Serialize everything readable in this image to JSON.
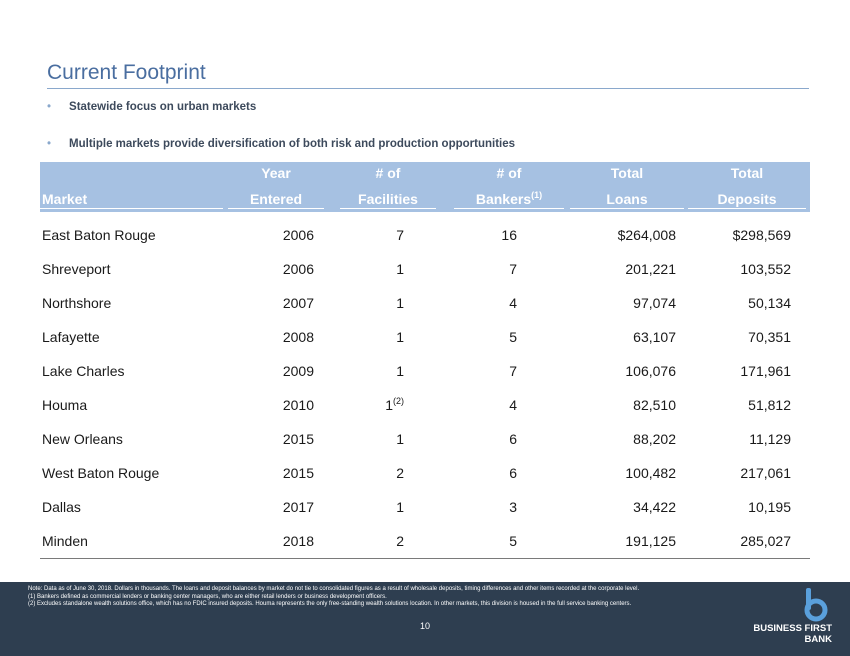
{
  "title": "Current Footprint",
  "bullets": [
    "Statewide focus on urban markets",
    "Multiple markets provide diversification of both risk and production opportunities"
  ],
  "table": {
    "headers": {
      "market": "Market",
      "year": [
        "Year",
        "Entered"
      ],
      "facilities": [
        "# of",
        "Facilities"
      ],
      "bankers": [
        "# of",
        "Bankers"
      ],
      "bankers_sup": "(1)",
      "loans": [
        "Total",
        "Loans"
      ],
      "deposits": [
        "Total",
        "Deposits"
      ]
    },
    "rows": [
      {
        "market": "East Baton Rouge",
        "year": "2006",
        "facilities": "7",
        "fac_sup": "",
        "bankers": "16",
        "loans": "$264,008",
        "deposits": "$298,569"
      },
      {
        "market": "Shreveport",
        "year": "2006",
        "facilities": "1",
        "fac_sup": "",
        "bankers": "7",
        "loans": "201,221",
        "deposits": "103,552"
      },
      {
        "market": "Northshore",
        "year": "2007",
        "facilities": "1",
        "fac_sup": "",
        "bankers": "4",
        "loans": "97,074",
        "deposits": "50,134"
      },
      {
        "market": "Lafayette",
        "year": "2008",
        "facilities": "1",
        "fac_sup": "",
        "bankers": "5",
        "loans": "63,107",
        "deposits": "70,351"
      },
      {
        "market": "Lake Charles",
        "year": "2009",
        "facilities": "1",
        "fac_sup": "",
        "bankers": "7",
        "loans": "106,076",
        "deposits": "171,961"
      },
      {
        "market": "Houma",
        "year": "2010",
        "facilities": "1",
        "fac_sup": "(2)",
        "bankers": "4",
        "loans": "82,510",
        "deposits": "51,812"
      },
      {
        "market": "New Orleans",
        "year": "2015",
        "facilities": "1",
        "fac_sup": "",
        "bankers": "6",
        "loans": "88,202",
        "deposits": "11,129"
      },
      {
        "market": "West Baton Rouge",
        "year": "2015",
        "facilities": "2",
        "fac_sup": "",
        "bankers": "6",
        "loans": "100,482",
        "deposits": "217,061"
      },
      {
        "market": "Dallas",
        "year": "2017",
        "facilities": "1",
        "fac_sup": "",
        "bankers": "3",
        "loans": "34,422",
        "deposits": "10,195"
      },
      {
        "market": "Minden",
        "year": "2018",
        "facilities": "2",
        "fac_sup": "",
        "bankers": "5",
        "loans": "191,125",
        "deposits": "285,027"
      }
    ]
  },
  "footer": {
    "notes": [
      "Note: Data as of June 30, 2018. Dollars in thousands. The loans and deposit balances by market do not tie to consolidated figures as a result of wholesale deposits, timing differences and other items recorded at the corporate level.",
      "(1) Bankers defined as commercial lenders or banking center managers, who are either retail lenders or business development officers.",
      "(2) Excludes standalone wealth solutions office, which has no FDIC insured deposits. Houma represents the only free-standing wealth solutions location. In other markets, this division is housed in the full service banking centers."
    ],
    "page_number": "10",
    "logo": {
      "line1": "BUSINESS FIRST",
      "line2": "BANK",
      "color": "#5aa0dc"
    }
  }
}
